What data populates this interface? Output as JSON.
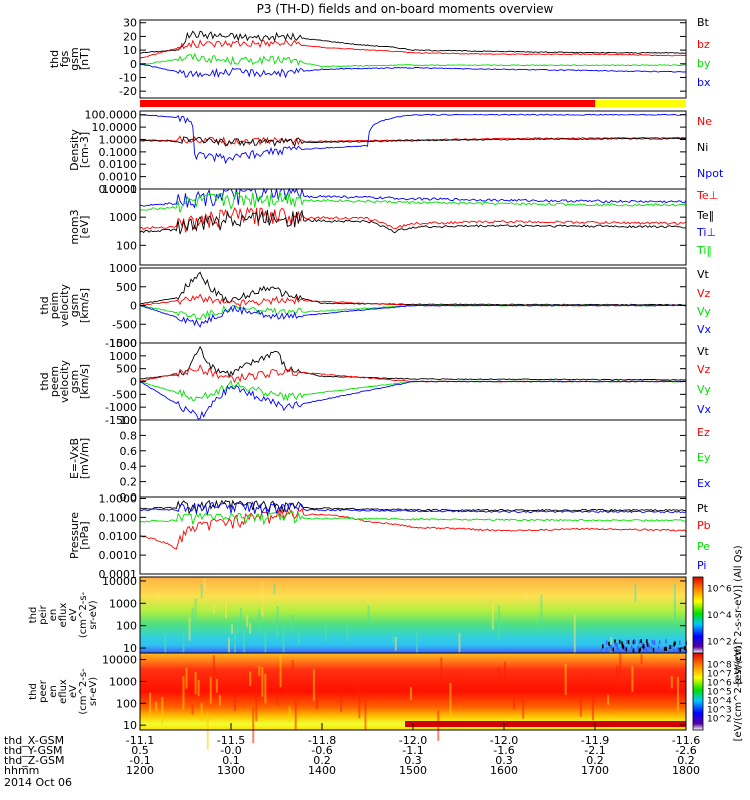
{
  "title": "P3 (TH-D) fields and on-board moments overview",
  "colors": {
    "black": "#000000",
    "red": "#ff0000",
    "green": "#00e000",
    "blue": "#0000ff",
    "yellow": "#ffff00"
  },
  "chart_data": [
    {
      "type": "line",
      "ylabel": [
        "thd",
        "fgs",
        "gsm",
        "[nT]"
      ],
      "ylim": [
        -25,
        32
      ],
      "ticks": [
        "30",
        "20",
        "10",
        "0",
        "-10",
        "-20"
      ],
      "tick_values": [
        30,
        20,
        10,
        0,
        -10,
        -20
      ],
      "series": [
        {
          "name": "Bt",
          "color": "#000000",
          "x": [
            1200,
            1240,
            1255,
            1300,
            1330,
            1360,
            1400,
            1440,
            1480,
            1500,
            1600,
            1700,
            1800
          ],
          "y": [
            8,
            10,
            22,
            20,
            19,
            20,
            17,
            14,
            12,
            10,
            9,
            8,
            8
          ]
        },
        {
          "name": "bz",
          "color": "#ff0000",
          "x": [
            1200,
            1255,
            1300,
            1360,
            1400,
            1480,
            1500,
            1600,
            1700,
            1800
          ],
          "y": [
            4,
            14,
            15,
            15,
            12,
            9,
            8,
            7,
            7,
            6
          ]
        },
        {
          "name": "by",
          "color": "#00e000",
          "x": [
            1200,
            1255,
            1300,
            1360,
            1400,
            1480,
            1500,
            1600,
            1700,
            1800
          ],
          "y": [
            -1,
            5,
            2,
            3,
            -2,
            -1,
            -1,
            -1,
            -1,
            -1
          ]
        },
        {
          "name": "bx",
          "color": "#0000ff",
          "x": [
            1200,
            1255,
            1300,
            1360,
            1400,
            1480,
            1500,
            1600,
            1700,
            1800
          ],
          "y": [
            0,
            -8,
            -6,
            -7,
            -4,
            -3,
            -3,
            -4,
            -5,
            -6
          ]
        }
      ]
    },
    {
      "type": "line",
      "ylabel": [
        "Density",
        "[cm-3]"
      ],
      "scale": "log",
      "ylim": [
        0.0001,
        200
      ],
      "ticks": [
        "100.0000",
        "10.0000",
        "1.0000",
        "0.1000",
        "0.0100",
        "0.0010",
        "0.0001"
      ],
      "tick_values": [
        100,
        10,
        1,
        0.1,
        0.01,
        0.001,
        0.0001
      ],
      "series": [
        {
          "name": "Ne",
          "color": "#ff0000",
          "x": [
            1200,
            1250,
            1300,
            1400,
            1500,
            1600,
            1700,
            1800
          ],
          "y": [
            0.9,
            0.8,
            0.6,
            0.7,
            0.9,
            1.2,
            1.3,
            1.4
          ]
        },
        {
          "name": "Ni",
          "color": "#000000",
          "x": [
            1200,
            1250,
            1300,
            1400,
            1500,
            1600,
            1700,
            1800
          ],
          "y": [
            0.8,
            0.7,
            0.5,
            0.6,
            0.8,
            1.0,
            1.1,
            1.2
          ]
        },
        {
          "name": "Npot",
          "color": "#0000ff",
          "x": [
            1200,
            1240,
            1260,
            1300,
            1350,
            1400,
            1450,
            1500,
            1600,
            1700,
            1800
          ],
          "y": [
            100,
            60,
            0.05,
            0.02,
            0.1,
            0.2,
            0.3,
            100,
            100,
            100,
            100
          ]
        }
      ]
    },
    {
      "type": "line",
      "ylabel": [
        "mom3",
        "[eV]"
      ],
      "scale": "log",
      "ylim": [
        20,
        10000
      ],
      "ticks": [
        "10000",
        "1000",
        "100"
      ],
      "tick_values": [
        10000,
        1000,
        100
      ],
      "series": [
        {
          "name": "Te⊥",
          "color": "#ff0000",
          "x": [
            1200,
            1260,
            1300,
            1350,
            1450,
            1480,
            1500,
            1600,
            1700,
            1800
          ],
          "y": [
            400,
            500,
            900,
            1000,
            900,
            400,
            600,
            700,
            650,
            600
          ]
        },
        {
          "name": "Te‖",
          "color": "#000000",
          "x": [
            1200,
            1260,
            1300,
            1350,
            1450,
            1480,
            1500,
            1600,
            1700,
            1800
          ],
          "y": [
            300,
            400,
            700,
            800,
            700,
            300,
            450,
            500,
            480,
            450
          ]
        },
        {
          "name": "Ti⊥",
          "color": "#0000ff",
          "x": [
            1200,
            1260,
            1300,
            1400,
            1500,
            1600,
            1700,
            1800
          ],
          "y": [
            2500,
            3500,
            5000,
            5500,
            4500,
            4000,
            3700,
            3500
          ]
        },
        {
          "name": "Ti‖",
          "color": "#00e000",
          "x": [
            1200,
            1260,
            1300,
            1400,
            1500,
            1600,
            1700,
            1800
          ],
          "y": [
            1800,
            2500,
            3500,
            4000,
            3300,
            3000,
            2800,
            2700
          ]
        }
      ]
    },
    {
      "type": "line",
      "ylabel": [
        "thd",
        "peim",
        "velocity",
        "gsm",
        "[km/s]"
      ],
      "ylim": [
        -1000,
        1000
      ],
      "ticks": [
        "1000",
        "500",
        "0",
        "-500",
        "-1000"
      ],
      "tick_values": [
        1000,
        500,
        0,
        -500,
        -1000
      ],
      "series": [
        {
          "name": "Vt",
          "color": "#000000",
          "x": [
            1200,
            1240,
            1265,
            1280,
            1300,
            1340,
            1360,
            1400,
            1500,
            1800
          ],
          "y": [
            40,
            200,
            900,
            400,
            100,
            500,
            300,
            60,
            30,
            20
          ]
        },
        {
          "name": "Vz",
          "color": "#ff0000",
          "x": [
            1200,
            1265,
            1300,
            1360,
            1500,
            1800
          ],
          "y": [
            0,
            200,
            50,
            150,
            0,
            0
          ]
        },
        {
          "name": "Vy",
          "color": "#00e000",
          "x": [
            1200,
            1265,
            1300,
            1360,
            1500,
            1800
          ],
          "y": [
            0,
            -300,
            -50,
            -200,
            0,
            0
          ]
        },
        {
          "name": "Vx",
          "color": "#0000ff",
          "x": [
            1200,
            1265,
            1300,
            1360,
            1500,
            1800
          ],
          "y": [
            0,
            -500,
            -100,
            -300,
            0,
            0
          ]
        }
      ]
    },
    {
      "type": "line",
      "ylabel": [
        "thd",
        "peem",
        "velocity",
        "gsm",
        "[km/s]"
      ],
      "ylim": [
        -1500,
        1500
      ],
      "ticks": [
        "1500",
        "1000",
        "500",
        "0",
        "-500",
        "-1000",
        "-1500"
      ],
      "tick_values": [
        1500,
        1000,
        500,
        0,
        -500,
        -1000,
        -1500
      ],
      "series": [
        {
          "name": "Vt",
          "color": "#000000",
          "x": [
            1200,
            1250,
            1265,
            1280,
            1300,
            1350,
            1360,
            1400,
            1500,
            1800
          ],
          "y": [
            100,
            300,
            1300,
            500,
            300,
            1200,
            500,
            200,
            100,
            60
          ]
        },
        {
          "name": "Vz",
          "color": "#ff0000",
          "x": [
            1200,
            1265,
            1300,
            1360,
            1500,
            1800
          ],
          "y": [
            0,
            500,
            100,
            400,
            0,
            0
          ]
        },
        {
          "name": "Vy",
          "color": "#00e000",
          "x": [
            1200,
            1265,
            1300,
            1360,
            1500,
            1800
          ],
          "y": [
            0,
            -700,
            -100,
            -600,
            0,
            0
          ]
        },
        {
          "name": "Vx",
          "color": "#0000ff",
          "x": [
            1200,
            1265,
            1300,
            1360,
            1500,
            1800
          ],
          "y": [
            0,
            -1400,
            -200,
            -1000,
            0,
            0
          ]
        }
      ]
    },
    {
      "type": "line",
      "ylabel": [
        "E=-VxB",
        "[mV/m]"
      ],
      "ylim": [
        0,
        1.0
      ],
      "ticks": [
        "1.0",
        "0.8",
        "0.6",
        "0.4",
        "0.2",
        "0.0"
      ],
      "tick_values": [
        1.0,
        0.8,
        0.6,
        0.4,
        0.2,
        0.0
      ],
      "series": [
        {
          "name": "Ez",
          "color": "#ff0000",
          "x": [],
          "y": []
        },
        {
          "name": "Ey",
          "color": "#00e000",
          "x": [],
          "y": []
        },
        {
          "name": "Ex",
          "color": "#0000ff",
          "x": [],
          "y": []
        }
      ]
    },
    {
      "type": "line",
      "ylabel": [
        "Pressure",
        "[nPa]"
      ],
      "scale": "log",
      "ylim": [
        0.0001,
        1.2
      ],
      "ticks": [
        "1.0000",
        "0.1000",
        "0.0100",
        "0.0010",
        "0.0001"
      ],
      "tick_values": [
        1,
        0.1,
        0.01,
        0.001,
        0.0001
      ],
      "series": [
        {
          "name": "Pt",
          "color": "#000000",
          "x": [
            1200,
            1300,
            1400,
            1500,
            1600,
            1700,
            1800
          ],
          "y": [
            0.3,
            0.35,
            0.3,
            0.25,
            0.24,
            0.24,
            0.24
          ]
        },
        {
          "name": "Pb",
          "color": "#ff0000",
          "x": [
            1200,
            1240,
            1260,
            1300,
            1350,
            1400,
            1450,
            1500,
            1600,
            1700,
            1800
          ],
          "y": [
            0.01,
            0.002,
            0.02,
            0.05,
            0.1,
            0.15,
            0.06,
            0.03,
            0.02,
            0.025,
            0.02
          ]
        },
        {
          "name": "Pe",
          "color": "#00e000",
          "x": [
            1200,
            1300,
            1400,
            1500,
            1600,
            1700,
            1800
          ],
          "y": [
            0.06,
            0.08,
            0.09,
            0.08,
            0.075,
            0.07,
            0.07
          ]
        },
        {
          "name": "Pi",
          "color": "#0000ff",
          "x": [
            1200,
            1300,
            1400,
            1500,
            1600,
            1700,
            1800
          ],
          "y": [
            0.25,
            0.28,
            0.25,
            0.22,
            0.2,
            0.2,
            0.2
          ]
        }
      ]
    },
    {
      "type": "heatmap",
      "ylabel": [
        "thd",
        "peir",
        "en",
        "eflux",
        "eV",
        "(cm^2-s-",
        "sr-eV)"
      ],
      "scale": "log",
      "ylim": [
        6,
        15000
      ],
      "ticks": [
        "10000",
        "1000",
        "100",
        "10"
      ],
      "tick_values": [
        10000,
        1000,
        100,
        10
      ],
      "colorbar": {
        "label": "[eV/(cm^2-s-sr-eV)] (All Qs)",
        "ticks": [
          "10^6",
          "10^4",
          "10^2"
        ]
      }
    },
    {
      "type": "heatmap",
      "ylabel": [
        "thd",
        "peer",
        "en",
        "eflux",
        "eV",
        "(cm^2-s-",
        "sr-eV)"
      ],
      "scale": "log",
      "ylim": [
        6,
        20000
      ],
      "ticks": [
        "10000",
        "1000",
        "100",
        "10"
      ],
      "tick_values": [
        10000,
        1000,
        100,
        10
      ],
      "colorbar": {
        "label": "[eV/(cm^2-s-sr-eV)]",
        "ticks": [
          "10^8",
          "10^7",
          "10^6",
          "10^5",
          "10^4",
          "10^3",
          "10^2"
        ]
      }
    }
  ],
  "legends": [
    [
      "Bt",
      "bz",
      "by",
      "bx"
    ],
    [
      "Ne",
      "Ni",
      "Npot"
    ],
    [
      "Te⊥",
      "Te‖",
      "Ti⊥",
      "Ti‖"
    ],
    [
      "Vt",
      "Vz",
      "Vy",
      "Vx"
    ],
    [
      "Vt",
      "Vz",
      "Vy",
      "Vx"
    ],
    [
      "Ez",
      "Ey",
      "Ex"
    ],
    [
      "Pt",
      "Pb",
      "Pe",
      "Pi"
    ]
  ],
  "xaxis": {
    "time_values": [
      1200,
      1300,
      1400,
      1500,
      1600,
      1700,
      1800
    ],
    "rows": [
      {
        "label": "thd_X-GSM",
        "values": [
          "-11.1",
          "-11.5",
          "-11.8",
          "-12.0",
          "-12.0",
          "-11.9",
          "-11.6"
        ]
      },
      {
        "label": "thd_Y-GSM",
        "values": [
          "0.5",
          "-0.0",
          "-0.6",
          "-1.1",
          "-1.6",
          "-2.1",
          "-2.6"
        ]
      },
      {
        "label": "thd_Z-GSM",
        "values": [
          "-0.1",
          "0.1",
          "0.2",
          "0.3",
          "0.3",
          "0.2",
          "0.2"
        ]
      },
      {
        "label": "hhmm",
        "values": [
          "1200",
          "1300",
          "1400",
          "1500",
          "1600",
          "1700",
          "1800"
        ]
      }
    ],
    "date": "2014 Oct 06"
  }
}
